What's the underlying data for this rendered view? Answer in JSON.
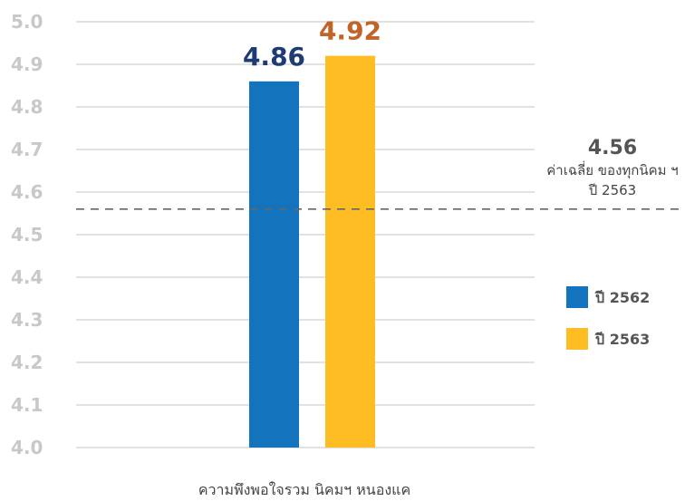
{
  "chart_data": {
    "type": "bar",
    "categories": [
      "ความพึงพอใจรวม นิคมฯ หนองแค"
    ],
    "series": [
      {
        "name": "ปี 2562",
        "values": [
          4.86
        ],
        "color": "#1374bd",
        "label_color": "#1f3b73"
      },
      {
        "name": "ปี 2563",
        "values": [
          4.92
        ],
        "color": "#fdbd23",
        "label_color": "#c0642a"
      }
    ],
    "data_labels": [
      "4.86",
      "4.92"
    ],
    "ylim": [
      4.0,
      5.0
    ],
    "yticks": [
      "4.0",
      "4.1",
      "4.2",
      "4.3",
      "4.4",
      "4.5",
      "4.6",
      "4.7",
      "4.8",
      "4.9",
      "5.0"
    ],
    "grid": true,
    "legend_position": "right",
    "reference_line": {
      "value": 4.56,
      "value_label": "4.56",
      "label_line1": "ค่าเฉลี่ย ของทุกนิคม ฯ",
      "label_line2": "ปี 2563",
      "style": "dashed"
    },
    "xlabel": "ความพึงพอใจรวม นิคมฯ หนองแค",
    "ylabel": "",
    "title": ""
  }
}
